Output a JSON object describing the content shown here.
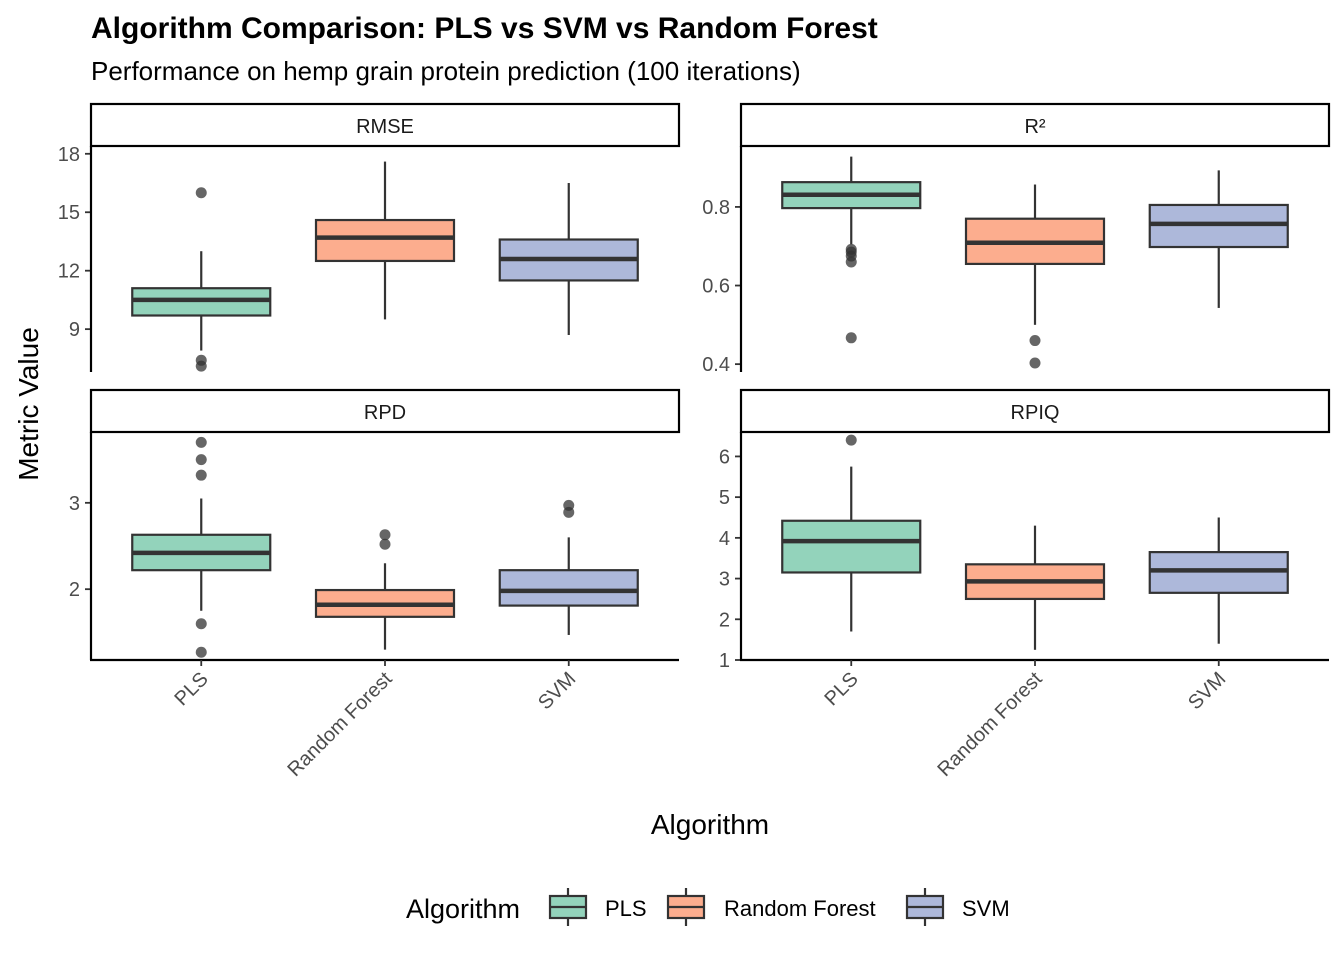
{
  "chart_data": {
    "type": "boxplot",
    "title": "Algorithm Comparison: PLS vs SVM vs Random Forest",
    "subtitle": "Performance on hemp grain protein prediction (100 iterations)",
    "xlabel": "Algorithm",
    "ylabel": "Metric Value",
    "categories": [
      "PLS",
      "Random Forest",
      "SVM"
    ],
    "colors": {
      "PLS": "#93d3bb",
      "Random Forest": "#fcad8e",
      "SVM": "#adb8da"
    },
    "legend": {
      "title": "Algorithm",
      "position": "bottom",
      "entries": [
        "PLS",
        "Random Forest",
        "SVM"
      ]
    },
    "grid": false,
    "facets": [
      {
        "name": "RMSE",
        "ylim": [
          6.8,
          18.4
        ],
        "yticks": [
          9,
          12,
          15,
          18
        ],
        "ytick_labels": [
          "9",
          "12",
          "15",
          "18"
        ],
        "boxes": [
          {
            "category": "PLS",
            "whisker_low": 7.9,
            "q1": 9.7,
            "median": 10.5,
            "q3": 11.1,
            "whisker_high": 13.0,
            "outliers": [
              16.0,
              7.4,
              7.1
            ]
          },
          {
            "category": "Random Forest",
            "whisker_low": 9.5,
            "q1": 12.5,
            "median": 13.7,
            "q3": 14.6,
            "whisker_high": 17.6,
            "outliers": []
          },
          {
            "category": "SVM",
            "whisker_low": 8.7,
            "q1": 11.5,
            "median": 12.6,
            "q3": 13.6,
            "whisker_high": 16.5,
            "outliers": []
          }
        ]
      },
      {
        "name": "R²",
        "ylim": [
          0.38,
          0.955
        ],
        "yticks": [
          0.4,
          0.6,
          0.8
        ],
        "ytick_labels": [
          "0.4",
          "0.6",
          "0.8"
        ],
        "boxes": [
          {
            "category": "PLS",
            "whisker_low": 0.705,
            "q1": 0.797,
            "median": 0.831,
            "q3": 0.863,
            "whisker_high": 0.928,
            "outliers": [
              0.692,
              0.685,
              0.675,
              0.66,
              0.467
            ]
          },
          {
            "category": "Random Forest",
            "whisker_low": 0.5,
            "q1": 0.655,
            "median": 0.709,
            "q3": 0.77,
            "whisker_high": 0.857,
            "outliers": [
              0.46,
              0.403
            ]
          },
          {
            "category": "SVM",
            "whisker_low": 0.543,
            "q1": 0.698,
            "median": 0.757,
            "q3": 0.805,
            "whisker_high": 0.893,
            "outliers": []
          }
        ]
      },
      {
        "name": "RPD",
        "ylim": [
          1.18,
          3.82
        ],
        "yticks": [
          2,
          3
        ],
        "ytick_labels": [
          "2",
          "3"
        ],
        "boxes": [
          {
            "category": "PLS",
            "whisker_low": 1.75,
            "q1": 2.22,
            "median": 2.42,
            "q3": 2.63,
            "whisker_high": 3.05,
            "outliers": [
              3.7,
              3.5,
              3.32,
              1.6,
              1.27
            ]
          },
          {
            "category": "Random Forest",
            "whisker_low": 1.3,
            "q1": 1.68,
            "median": 1.82,
            "q3": 1.99,
            "whisker_high": 2.3,
            "outliers": [
              2.63,
              2.52
            ]
          },
          {
            "category": "SVM",
            "whisker_low": 1.47,
            "q1": 1.81,
            "median": 1.98,
            "q3": 2.22,
            "whisker_high": 2.6,
            "outliers": [
              2.97,
              2.89
            ]
          }
        ]
      },
      {
        "name": "RPIQ",
        "ylim": [
          1.0,
          6.6
        ],
        "yticks": [
          1,
          2,
          3,
          4,
          5,
          6
        ],
        "ytick_labels": [
          "1",
          "2",
          "3",
          "4",
          "5",
          "6"
        ],
        "boxes": [
          {
            "category": "PLS",
            "whisker_low": 1.7,
            "q1": 3.15,
            "median": 3.92,
            "q3": 4.42,
            "whisker_high": 5.75,
            "outliers": [
              6.4
            ]
          },
          {
            "category": "Random Forest",
            "whisker_low": 1.25,
            "q1": 2.5,
            "median": 2.93,
            "q3": 3.35,
            "whisker_high": 4.3,
            "outliers": []
          },
          {
            "category": "SVM",
            "whisker_low": 1.4,
            "q1": 2.65,
            "median": 3.2,
            "q3": 3.65,
            "whisker_high": 4.5,
            "outliers": []
          }
        ]
      }
    ]
  }
}
